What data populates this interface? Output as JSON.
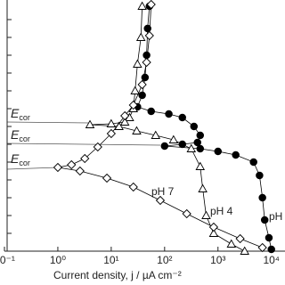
{
  "chart_data": {
    "type": "line",
    "log_x": true,
    "x_label": "Current density, j / µA cm⁻²",
    "xlim": [
      0.1,
      18000
    ],
    "xticks": [
      {
        "value": 0.1,
        "label": "10⁻¹"
      },
      {
        "value": 1,
        "label": "10⁰"
      },
      {
        "value": 10,
        "label": "10¹"
      },
      {
        "value": 100,
        "label": "10²"
      },
      {
        "value": 1000,
        "label": "10³"
      },
      {
        "value": 10000,
        "label": "10⁴"
      }
    ],
    "ylim": [
      0,
      282
    ],
    "yticks": [
      20,
      40,
      60,
      80,
      100,
      120,
      140,
      160,
      180,
      200,
      220,
      240,
      260
    ],
    "annotations": [
      "pH 7",
      "pH 4",
      "pH"
    ],
    "ecor_labels": [
      {
        "symbol": "E",
        "subscript": "cor"
      },
      {
        "symbol": "E",
        "subscript": "cor"
      },
      {
        "symbol": "E",
        "subscript": "cor"
      }
    ],
    "series": [
      {
        "color": "#000000",
        "marker": "circle-filled",
        "x": [
          52,
          48,
          46,
          43,
          38,
          31,
          56,
          120,
          215,
          355,
          464,
          413,
          215,
          100,
          464,
          1000,
          2150,
          4640,
          6000,
          6800,
          7500,
          9000,
          10000
        ],
        "values": [
          275,
          250,
          220,
          195,
          175,
          162,
          157,
          154,
          150,
          140,
          130,
          122,
          120,
          118,
          115,
          112,
          108,
          100,
          85,
          60,
          35,
          15,
          2
        ]
      },
      {
        "color": "#000000",
        "marker": "triangle",
        "x": [
          38,
          36,
          31,
          28,
          26,
          22,
          18,
          10,
          4,
          14,
          30,
          68,
          147,
          316,
          464,
          518,
          600,
          830,
          1780,
          3160
        ],
        "values": [
          275,
          240,
          210,
          180,
          160,
          150,
          145,
          143,
          142,
          140,
          135,
          130,
          125,
          115,
          95,
          70,
          40,
          20,
          8,
          0
        ]
      },
      {
        "color": "#000000",
        "marker": "diamond",
        "x": [
          56,
          52,
          46,
          38,
          26,
          18,
          10,
          5.6,
          3.2,
          1.8,
          1,
          2.6,
          8.3,
          26,
          83,
          260,
          830,
          2600,
          6800
        ],
        "values": [
          277,
          242,
          212,
          187,
          164,
          152,
          132,
          117,
          104,
          97,
          94,
          90,
          82,
          72,
          57,
          42,
          27,
          14,
          4
        ]
      }
    ]
  }
}
